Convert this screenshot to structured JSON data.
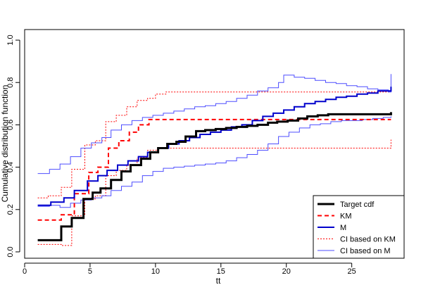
{
  "chart_data": {
    "type": "line",
    "step": true,
    "xlabel": "tt",
    "ylabel": "Cumulative distribution function",
    "xlim": [
      0,
      29
    ],
    "ylim": [
      -0.03,
      1.05
    ],
    "xticks": [
      0,
      5,
      10,
      15,
      20,
      25
    ],
    "yticks": [
      0.0,
      0.2,
      0.4,
      0.6,
      0.8,
      1.0
    ],
    "ytick_labels": [
      "0.0",
      "0.2",
      "0.4",
      "0.6",
      "0.8",
      "1.0"
    ],
    "legend_position": "bottom-right",
    "series": [
      {
        "name": "Target cdf",
        "color": "#000000",
        "dash": "solid",
        "width": 3,
        "x": [
          1.0,
          2.8,
          3.6,
          4.5,
          5.2,
          5.8,
          6.6,
          7.4,
          8.1,
          8.9,
          9.6,
          10.2,
          10.9,
          11.6,
          12.3,
          13.1,
          13.8,
          14.6,
          15.4,
          16.2,
          17.0,
          17.8,
          18.6,
          19.3,
          20.1,
          20.9,
          21.6,
          22.4,
          23.2,
          24.0,
          25.0,
          28.0
        ],
        "y": [
          0.055,
          0.12,
          0.16,
          0.25,
          0.28,
          0.3,
          0.34,
          0.38,
          0.41,
          0.44,
          0.47,
          0.49,
          0.51,
          0.52,
          0.545,
          0.57,
          0.575,
          0.58,
          0.585,
          0.59,
          0.595,
          0.6,
          0.61,
          0.615,
          0.62,
          0.63,
          0.64,
          0.645,
          0.65,
          0.65,
          0.65,
          0.66
        ]
      },
      {
        "name": "KM",
        "color": "#ff0000",
        "dash": "6,4",
        "width": 2,
        "x": [
          1.0,
          2.8,
          3.8,
          4.9,
          5.6,
          6.4,
          7.2,
          8.0,
          8.7,
          9.5,
          10.3,
          28.0
        ],
        "y": [
          0.15,
          0.175,
          0.275,
          0.375,
          0.4,
          0.49,
          0.525,
          0.565,
          0.6,
          0.625,
          0.625,
          0.625
        ]
      },
      {
        "name": "M",
        "color": "#0000cc",
        "dash": "solid",
        "width": 2,
        "x": [
          1.0,
          2.0,
          3.0,
          3.8,
          4.8,
          5.6,
          6.3,
          7.1,
          7.9,
          8.7,
          9.4,
          10.2,
          11.0,
          11.8,
          12.6,
          13.4,
          14.2,
          15.0,
          15.8,
          16.6,
          17.4,
          18.2,
          19.0,
          19.8,
          20.6,
          21.4,
          22.2,
          23.0,
          23.8,
          24.6,
          25.4,
          26.2,
          27.0,
          28.0
        ],
        "y": [
          0.22,
          0.235,
          0.255,
          0.29,
          0.335,
          0.36,
          0.385,
          0.41,
          0.43,
          0.45,
          0.47,
          0.49,
          0.51,
          0.525,
          0.54,
          0.555,
          0.565,
          0.575,
          0.59,
          0.6,
          0.62,
          0.64,
          0.655,
          0.67,
          0.685,
          0.7,
          0.71,
          0.72,
          0.73,
          0.735,
          0.745,
          0.75,
          0.76,
          0.78
        ]
      },
      {
        "name": "CI based on KM",
        "color": "#ff0000",
        "dash": "2,2",
        "width": 1,
        "x": [
          1.0,
          1.8,
          2.8,
          3.6,
          4.6,
          5.4,
          6.2,
          7.0,
          7.8,
          8.6,
          9.4,
          10.0,
          10.8,
          28.0
        ],
        "y": [
          0.255,
          0.265,
          0.305,
          0.39,
          0.505,
          0.525,
          0.615,
          0.645,
          0.685,
          0.715,
          0.725,
          0.745,
          0.755,
          0.755
        ]
      },
      {
        "name": "CI based on KM",
        "color": "#ff0000",
        "dash": "2,2",
        "width": 1,
        "x": [
          1.0,
          2.8,
          3.6,
          4.6,
          5.4,
          6.2,
          7.0,
          7.8,
          8.6,
          9.4,
          10.2,
          28.0
        ],
        "y": [
          0.035,
          0.03,
          0.17,
          0.25,
          0.265,
          0.36,
          0.385,
          0.41,
          0.445,
          0.48,
          0.49,
          0.53
        ]
      },
      {
        "name": "CI based on M",
        "color": "#4d4dff",
        "dash": "solid",
        "width": 1,
        "x": [
          1.0,
          1.9,
          2.7,
          3.5,
          4.3,
          5.1,
          5.9,
          6.6,
          7.4,
          8.2,
          9.0,
          9.8,
          10.6,
          11.4,
          12.2,
          13.0,
          13.8,
          14.6,
          15.4,
          16.2,
          17.0,
          17.8,
          18.6,
          19.4,
          19.8,
          20.6,
          21.4,
          22.2,
          23.0,
          23.8,
          24.6,
          25.4,
          26.2,
          27.0,
          27.8,
          28.0
        ],
        "y": [
          0.37,
          0.39,
          0.415,
          0.45,
          0.49,
          0.515,
          0.54,
          0.575,
          0.6,
          0.62,
          0.635,
          0.645,
          0.655,
          0.665,
          0.675,
          0.685,
          0.69,
          0.7,
          0.71,
          0.725,
          0.74,
          0.76,
          0.775,
          0.8,
          0.835,
          0.825,
          0.82,
          0.81,
          0.8,
          0.795,
          0.785,
          0.78,
          0.77,
          0.765,
          0.755,
          0.84
        ]
      },
      {
        "name": "CI based on M",
        "color": "#4d4dff",
        "dash": "solid",
        "width": 1,
        "x": [
          1.0,
          1.9,
          2.7,
          3.5,
          4.3,
          5.1,
          5.9,
          6.6,
          7.4,
          8.2,
          9.0,
          9.8,
          10.6,
          11.4,
          12.2,
          13.0,
          13.8,
          14.6,
          15.4,
          16.2,
          17.0,
          17.8,
          18.6,
          19.4,
          20.2,
          21.0,
          21.8,
          22.6,
          23.4,
          24.2,
          25.0,
          25.8,
          26.6,
          27.4,
          28.0
        ],
        "y": [
          0.215,
          0.22,
          0.21,
          0.23,
          0.245,
          0.255,
          0.265,
          0.29,
          0.31,
          0.33,
          0.36,
          0.38,
          0.395,
          0.4,
          0.405,
          0.41,
          0.415,
          0.42,
          0.43,
          0.445,
          0.46,
          0.48,
          0.51,
          0.545,
          0.565,
          0.585,
          0.6,
          0.605,
          0.615,
          0.62,
          0.62,
          0.625,
          0.63,
          0.635,
          0.64
        ]
      }
    ],
    "legend": [
      {
        "label": "Target cdf",
        "color": "#000000",
        "dash": "solid",
        "width": 3
      },
      {
        "label": "KM",
        "color": "#ff0000",
        "dash": "6,4",
        "width": 2
      },
      {
        "label": "M",
        "color": "#0000cc",
        "dash": "solid",
        "width": 2
      },
      {
        "label": "CI based on KM",
        "color": "#ff0000",
        "dash": "2,2",
        "width": 1
      },
      {
        "label": "CI based on M",
        "color": "#4d4dff",
        "dash": "solid",
        "width": 1
      }
    ]
  }
}
